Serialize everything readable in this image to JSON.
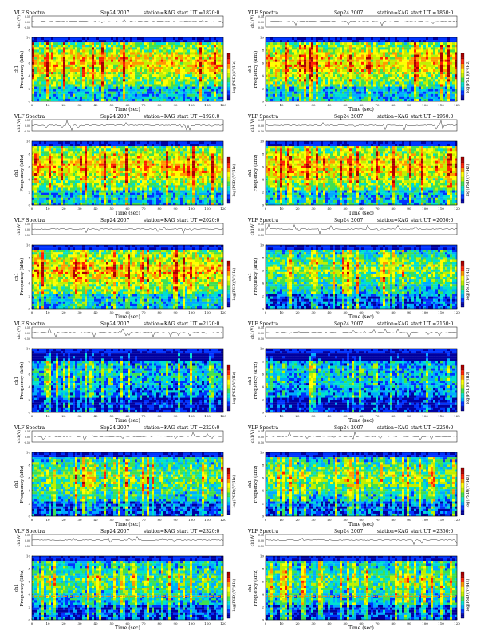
{
  "header": {
    "title": "VLF Spectra",
    "date": "Sep24 2007",
    "station": "station=KAG",
    "ut_prefix": "start  UT  ="
  },
  "colors": {
    "scale": [
      "#0000a0",
      "#0033ff",
      "#00aaff",
      "#00e0d0",
      "#40e050",
      "#c0f000",
      "#ffff00",
      "#ff9900",
      "#ff2000",
      "#aa0000"
    ]
  },
  "chart_data": [
    {
      "type": "heatmap",
      "start_ut": "1820:0",
      "title": "VLF Spectra",
      "subtitle": "Sep24 2007",
      "station": "station=KAG",
      "xlabel": "Time  (sec)",
      "ylabel": "Frequency  (kHz)",
      "channel_label": "ch1",
      "wave_label": "ch1(V)",
      "colorbar_label": "log(PSD)(V²/Hz)",
      "xlim": [
        0,
        120
      ],
      "ylim": [
        0,
        10
      ],
      "x_ticks": [
        0,
        10,
        20,
        30,
        40,
        50,
        60,
        70,
        80,
        90,
        100,
        110,
        120
      ],
      "y_ticks": [
        0,
        2,
        4,
        6,
        8,
        10
      ],
      "wave_ticks": [
        "0.50",
        "0.00",
        "-0.50"
      ],
      "intensity": "high"
    },
    {
      "type": "heatmap",
      "start_ut": "1850:0",
      "title": "VLF Spectra",
      "subtitle": "Sep24 2007",
      "station": "station=KAG",
      "xlabel": "Time  (sec)",
      "ylabel": "Frequency  (kHz)",
      "channel_label": "ch1",
      "wave_label": "ch1(V)",
      "colorbar_label": "log(PSD)(V²/Hz)",
      "xlim": [
        0,
        120
      ],
      "ylim": [
        0,
        10
      ],
      "x_ticks": [
        0,
        10,
        20,
        30,
        40,
        50,
        60,
        70,
        80,
        90,
        100,
        110,
        120
      ],
      "y_ticks": [
        0,
        2,
        4,
        6,
        8,
        10
      ],
      "wave_ticks": [
        "0.50",
        "0.00",
        "-0.50"
      ],
      "intensity": "high"
    },
    {
      "type": "heatmap",
      "start_ut": "1920:0",
      "title": "VLF Spectra",
      "subtitle": "Sep24 2007",
      "station": "station=KAG",
      "xlabel": "Time  (sec)",
      "ylabel": "Frequency  (kHz)",
      "channel_label": "ch1",
      "wave_label": "ch1(V)",
      "colorbar_label": "log(PSD)(V²/Hz)",
      "xlim": [
        0,
        120
      ],
      "ylim": [
        0,
        10
      ],
      "x_ticks": [
        0,
        10,
        20,
        30,
        40,
        50,
        60,
        70,
        80,
        90,
        100,
        110,
        120
      ],
      "y_ticks": [
        0,
        2,
        4,
        6,
        8,
        10
      ],
      "wave_ticks": [
        "0.50",
        "0.00",
        "-0.50"
      ],
      "intensity": "high"
    },
    {
      "type": "heatmap",
      "start_ut": "1950:0",
      "title": "VLF Spectra",
      "subtitle": "Sep24 2007",
      "station": "station=KAG",
      "xlabel": "Time  (sec)",
      "ylabel": "Frequency  (kHz)",
      "channel_label": "ch1",
      "wave_label": "ch1(V)",
      "colorbar_label": "log(PSD)(V²/Hz)",
      "xlim": [
        0,
        120
      ],
      "ylim": [
        0,
        10
      ],
      "x_ticks": [
        0,
        10,
        20,
        30,
        40,
        50,
        60,
        70,
        80,
        90,
        100,
        110,
        120
      ],
      "y_ticks": [
        0,
        2,
        4,
        6,
        8,
        10
      ],
      "wave_ticks": [
        "0.50",
        "0.00",
        "-0.50"
      ],
      "intensity": "high"
    },
    {
      "type": "heatmap",
      "start_ut": "2020:0",
      "title": "VLF Spectra",
      "subtitle": "Sep24 2007",
      "station": "station=KAG",
      "xlabel": "Time  (sec)",
      "ylabel": "Frequency  (kHz)",
      "channel_label": "ch1",
      "wave_label": "ch1(V)",
      "colorbar_label": "log(PSD)(V²/Hz)",
      "xlim": [
        0,
        120
      ],
      "ylim": [
        0,
        10
      ],
      "x_ticks": [
        0,
        10,
        20,
        30,
        40,
        50,
        60,
        70,
        80,
        90,
        100,
        110,
        120
      ],
      "y_ticks": [
        0,
        2,
        4,
        6,
        8,
        10
      ],
      "wave_ticks": [
        "0.50",
        "0.00",
        "-0.50"
      ],
      "intensity": "high"
    },
    {
      "type": "heatmap",
      "start_ut": "2050:0",
      "title": "VLF Spectra",
      "subtitle": "Sep24 2007",
      "station": "station=KAG",
      "xlabel": "Time  (sec)",
      "ylabel": "Frequency  (kHz)",
      "channel_label": "ch1",
      "wave_label": "ch1(V)",
      "colorbar_label": "log(PSD)(V²/Hz)",
      "xlim": [
        0,
        120
      ],
      "ylim": [
        0,
        10
      ],
      "x_ticks": [
        0,
        10,
        20,
        30,
        40,
        50,
        60,
        70,
        80,
        90,
        100,
        110,
        120
      ],
      "y_ticks": [
        0,
        2,
        4,
        6,
        8,
        10
      ],
      "wave_ticks": [
        "0.50",
        "0.00",
        "-0.50"
      ],
      "intensity": "mid"
    },
    {
      "type": "heatmap",
      "start_ut": "2120:0",
      "title": "VLF Spectra",
      "subtitle": "Sep24 2007",
      "station": "station=KAG",
      "xlabel": "Time  (sec)",
      "ylabel": "Frequency  (kHz)",
      "channel_label": "ch1",
      "wave_label": "ch1(V)",
      "colorbar_label": "log(PSD)(V²/Hz)",
      "xlim": [
        0,
        120
      ],
      "ylim": [
        0,
        10
      ],
      "x_ticks": [
        0,
        10,
        20,
        30,
        40,
        50,
        60,
        70,
        80,
        90,
        100,
        110,
        120
      ],
      "y_ticks": [
        0,
        2,
        4,
        6,
        8,
        10
      ],
      "wave_ticks": [
        "0.50",
        "0.00",
        "-0.50"
      ],
      "intensity": "low"
    },
    {
      "type": "heatmap",
      "start_ut": "2150:0",
      "title": "VLF Spectra",
      "subtitle": "Sep24 2007",
      "station": "station=KAG",
      "xlabel": "Time  (sec)",
      "ylabel": "Frequency  (kHz)",
      "channel_label": "ch1",
      "wave_label": "ch1(V)",
      "colorbar_label": "log(PSD)(V²/Hz)",
      "xlim": [
        0,
        120
      ],
      "ylim": [
        0,
        10
      ],
      "x_ticks": [
        0,
        10,
        20,
        30,
        40,
        50,
        60,
        70,
        80,
        90,
        100,
        110,
        120
      ],
      "y_ticks": [
        0,
        2,
        4,
        6,
        8,
        10
      ],
      "wave_ticks": [
        "0.50",
        "0.00",
        "-0.50"
      ],
      "intensity": "low"
    },
    {
      "type": "heatmap",
      "start_ut": "2220:0",
      "title": "VLF Spectra",
      "subtitle": "Sep24 2007",
      "station": "station=KAG",
      "xlabel": "Time  (sec)",
      "ylabel": "Frequency  (kHz)",
      "channel_label": "ch1",
      "wave_label": "ch1(V)",
      "colorbar_label": "log(PSD)(V²/Hz)",
      "xlim": [
        0,
        120
      ],
      "ylim": [
        0,
        10
      ],
      "x_ticks": [
        0,
        10,
        20,
        30,
        40,
        50,
        60,
        70,
        80,
        90,
        100,
        110,
        120
      ],
      "y_ticks": [
        0,
        2,
        4,
        6,
        8,
        10
      ],
      "wave_ticks": [
        "0.50",
        "0.00",
        "-0.50"
      ],
      "intensity": "mid"
    },
    {
      "type": "heatmap",
      "start_ut": "2250:0",
      "title": "VLF Spectra",
      "subtitle": "Sep24 2007",
      "station": "station=KAG",
      "xlabel": "Time  (sec)",
      "ylabel": "Frequency  (kHz)",
      "channel_label": "ch1",
      "wave_label": "ch1(V)",
      "colorbar_label": "log(PSD)(V²/Hz)",
      "xlim": [
        0,
        120
      ],
      "ylim": [
        0,
        10
      ],
      "x_ticks": [
        0,
        10,
        20,
        30,
        40,
        50,
        60,
        70,
        80,
        90,
        100,
        110,
        120
      ],
      "y_ticks": [
        0,
        2,
        4,
        6,
        8,
        10
      ],
      "wave_ticks": [
        "0.50",
        "0.00",
        "-0.50"
      ],
      "intensity": "mid"
    },
    {
      "type": "heatmap",
      "start_ut": "2320:0",
      "title": "VLF Spectra",
      "subtitle": "Sep24 2007",
      "station": "station=KAG",
      "xlabel": "Time  (sec)",
      "ylabel": "Frequency  (kHz)",
      "channel_label": "ch1",
      "wave_label": "ch1(V)",
      "colorbar_label": "log(PSD)(V²/Hz)",
      "xlim": [
        0,
        120
      ],
      "ylim": [
        0,
        10
      ],
      "x_ticks": [
        0,
        10,
        20,
        30,
        40,
        50,
        60,
        70,
        80,
        90,
        100,
        110,
        120
      ],
      "y_ticks": [
        0,
        2,
        4,
        6,
        8,
        10
      ],
      "wave_ticks": [
        "0.50",
        "0.00",
        "-0.50"
      ],
      "intensity": "band",
      "band_freq_khz": 3.7
    },
    {
      "type": "heatmap",
      "start_ut": "2350:0",
      "title": "VLF Spectra",
      "subtitle": "Sep24 2007",
      "station": "station=KAG",
      "xlabel": "Time  (sec)",
      "ylabel": "Frequency  (kHz)",
      "channel_label": "ch1",
      "wave_label": "ch1(V)",
      "colorbar_label": "log(PSD)(V²/Hz)",
      "xlim": [
        0,
        120
      ],
      "ylim": [
        0,
        10
      ],
      "x_ticks": [
        0,
        10,
        20,
        30,
        40,
        50,
        60,
        70,
        80,
        90,
        100,
        110,
        120
      ],
      "y_ticks": [
        0,
        2,
        4,
        6,
        8,
        10
      ],
      "wave_ticks": [
        "0.50",
        "0.00",
        "-0.50"
      ],
      "intensity": "band",
      "band_freq_khz": 3.7
    }
  ]
}
